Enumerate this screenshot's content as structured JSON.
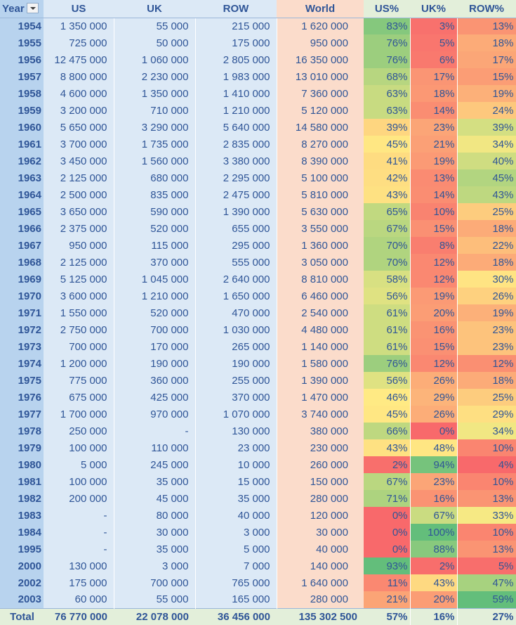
{
  "header": {
    "year": "Year",
    "us": "US",
    "uk": "UK",
    "row": "ROW",
    "world": "World",
    "us_pct": "US%",
    "uk_pct": "UK%",
    "row_pct": "ROW%"
  },
  "filter_icon": "dropdown-arrow-icon",
  "rows": [
    {
      "year": "1954",
      "us": "1 350 000",
      "uk": "55 000",
      "row": "215 000",
      "world": "1 620 000",
      "us_pct": "83%",
      "uk_pct": "3%",
      "row_pct": "13%"
    },
    {
      "year": "1955",
      "us": "725 000",
      "uk": "50 000",
      "row": "175 000",
      "world": "950 000",
      "us_pct": "76%",
      "uk_pct": "5%",
      "row_pct": "18%"
    },
    {
      "year": "1956",
      "us": "12 475 000",
      "uk": "1 060 000",
      "row": "2 805 000",
      "world": "16 350 000",
      "us_pct": "76%",
      "uk_pct": "6%",
      "row_pct": "17%"
    },
    {
      "year": "1957",
      "us": "8 800 000",
      "uk": "2 230 000",
      "row": "1 983 000",
      "world": "13 010 000",
      "us_pct": "68%",
      "uk_pct": "17%",
      "row_pct": "15%"
    },
    {
      "year": "1958",
      "us": "4 600 000",
      "uk": "1 350 000",
      "row": "1 410 000",
      "world": "7 360 000",
      "us_pct": "63%",
      "uk_pct": "18%",
      "row_pct": "19%"
    },
    {
      "year": "1959",
      "us": "3 200 000",
      "uk": "710 000",
      "row": "1 210 000",
      "world": "5 120 000",
      "us_pct": "63%",
      "uk_pct": "14%",
      "row_pct": "24%"
    },
    {
      "year": "1960",
      "us": "5 650 000",
      "uk": "3 290 000",
      "row": "5 640 000",
      "world": "14 580 000",
      "us_pct": "39%",
      "uk_pct": "23%",
      "row_pct": "39%"
    },
    {
      "year": "1961",
      "us": "3 700 000",
      "uk": "1 735 000",
      "row": "2 835 000",
      "world": "8 270 000",
      "us_pct": "45%",
      "uk_pct": "21%",
      "row_pct": "34%"
    },
    {
      "year": "1962",
      "us": "3 450 000",
      "uk": "1 560 000",
      "row": "3 380 000",
      "world": "8 390 000",
      "us_pct": "41%",
      "uk_pct": "19%",
      "row_pct": "40%"
    },
    {
      "year": "1963",
      "us": "2 125 000",
      "uk": "680 000",
      "row": "2 295 000",
      "world": "5 100 000",
      "us_pct": "42%",
      "uk_pct": "13%",
      "row_pct": "45%"
    },
    {
      "year": "1964",
      "us": "2 500 000",
      "uk": "835 000",
      "row": "2 475 000",
      "world": "5 810 000",
      "us_pct": "43%",
      "uk_pct": "14%",
      "row_pct": "43%"
    },
    {
      "year": "1965",
      "us": "3 650 000",
      "uk": "590 000",
      "row": "1 390 000",
      "world": "5 630 000",
      "us_pct": "65%",
      "uk_pct": "10%",
      "row_pct": "25%"
    },
    {
      "year": "1966",
      "us": "2 375 000",
      "uk": "520 000",
      "row": "655 000",
      "world": "3 550 000",
      "us_pct": "67%",
      "uk_pct": "15%",
      "row_pct": "18%"
    },
    {
      "year": "1967",
      "us": "950 000",
      "uk": "115 000",
      "row": "295 000",
      "world": "1 360 000",
      "us_pct": "70%",
      "uk_pct": "8%",
      "row_pct": "22%"
    },
    {
      "year": "1968",
      "us": "2 125 000",
      "uk": "370 000",
      "row": "555 000",
      "world": "3 050 000",
      "us_pct": "70%",
      "uk_pct": "12%",
      "row_pct": "18%"
    },
    {
      "year": "1969",
      "us": "5 125 000",
      "uk": "1 045 000",
      "row": "2 640 000",
      "world": "8 810 000",
      "us_pct": "58%",
      "uk_pct": "12%",
      "row_pct": "30%"
    },
    {
      "year": "1970",
      "us": "3 600 000",
      "uk": "1 210 000",
      "row": "1 650 000",
      "world": "6 460 000",
      "us_pct": "56%",
      "uk_pct": "19%",
      "row_pct": "26%"
    },
    {
      "year": "1971",
      "us": "1 550 000",
      "uk": "520 000",
      "row": "470 000",
      "world": "2 540 000",
      "us_pct": "61%",
      "uk_pct": "20%",
      "row_pct": "19%"
    },
    {
      "year": "1972",
      "us": "2 750 000",
      "uk": "700 000",
      "row": "1 030 000",
      "world": "4 480 000",
      "us_pct": "61%",
      "uk_pct": "16%",
      "row_pct": "23%"
    },
    {
      "year": "1973",
      "us": "700 000",
      "uk": "170 000",
      "row": "265 000",
      "world": "1 140 000",
      "us_pct": "61%",
      "uk_pct": "15%",
      "row_pct": "23%"
    },
    {
      "year": "1974",
      "us": "1 200 000",
      "uk": "190 000",
      "row": "190 000",
      "world": "1 580 000",
      "us_pct": "76%",
      "uk_pct": "12%",
      "row_pct": "12%"
    },
    {
      "year": "1975",
      "us": "775 000",
      "uk": "360 000",
      "row": "255 000",
      "world": "1 390 000",
      "us_pct": "56%",
      "uk_pct": "26%",
      "row_pct": "18%"
    },
    {
      "year": "1976",
      "us": "675 000",
      "uk": "425 000",
      "row": "370 000",
      "world": "1 470 000",
      "us_pct": "46%",
      "uk_pct": "29%",
      "row_pct": "25%"
    },
    {
      "year": "1977",
      "us": "1 700 000",
      "uk": "970 000",
      "row": "1 070 000",
      "world": "3 740 000",
      "us_pct": "45%",
      "uk_pct": "26%",
      "row_pct": "29%"
    },
    {
      "year": "1978",
      "us": "250 000",
      "uk": "-",
      "row": "130 000",
      "world": "380 000",
      "us_pct": "66%",
      "uk_pct": "0%",
      "row_pct": "34%"
    },
    {
      "year": "1979",
      "us": "100 000",
      "uk": "110 000",
      "row": "23 000",
      "world": "230 000",
      "us_pct": "43%",
      "uk_pct": "48%",
      "row_pct": "10%"
    },
    {
      "year": "1980",
      "us": "5 000",
      "uk": "245 000",
      "row": "10 000",
      "world": "260 000",
      "us_pct": "2%",
      "uk_pct": "94%",
      "row_pct": "4%"
    },
    {
      "year": "1981",
      "us": "100 000",
      "uk": "35 000",
      "row": "15 000",
      "world": "150 000",
      "us_pct": "67%",
      "uk_pct": "23%",
      "row_pct": "10%"
    },
    {
      "year": "1982",
      "us": "200 000",
      "uk": "45 000",
      "row": "35 000",
      "world": "280 000",
      "us_pct": "71%",
      "uk_pct": "16%",
      "row_pct": "13%"
    },
    {
      "year": "1983",
      "us": "-",
      "uk": "80 000",
      "row": "40 000",
      "world": "120 000",
      "us_pct": "0%",
      "uk_pct": "67%",
      "row_pct": "33%"
    },
    {
      "year": "1984",
      "us": "-",
      "uk": "30 000",
      "row": "3 000",
      "world": "30 000",
      "us_pct": "0%",
      "uk_pct": "100%",
      "row_pct": "10%"
    },
    {
      "year": "1995",
      "us": "-",
      "uk": "35 000",
      "row": "5 000",
      "world": "40 000",
      "us_pct": "0%",
      "uk_pct": "88%",
      "row_pct": "13%"
    },
    {
      "year": "2000",
      "us": "130 000",
      "uk": "3 000",
      "row": "7 000",
      "world": "140 000",
      "us_pct": "93%",
      "uk_pct": "2%",
      "row_pct": "5%"
    },
    {
      "year": "2002",
      "us": "175 000",
      "uk": "700 000",
      "row": "765 000",
      "world": "1 640 000",
      "us_pct": "11%",
      "uk_pct": "43%",
      "row_pct": "47%"
    },
    {
      "year": "2003",
      "us": "60 000",
      "uk": "55 000",
      "row": "165 000",
      "world": "280 000",
      "us_pct": "21%",
      "uk_pct": "20%",
      "row_pct": "59%"
    }
  ],
  "total": {
    "year": "Total",
    "us": "76 770 000",
    "uk": "22 078 000",
    "row": "36 456 000",
    "world": "135 302 500",
    "us_pct": "57%",
    "uk_pct": "16%",
    "row_pct": "27%"
  },
  "color_scale": {
    "low": "#f8696b",
    "mid": "#ffeb84",
    "high": "#63be7b"
  }
}
